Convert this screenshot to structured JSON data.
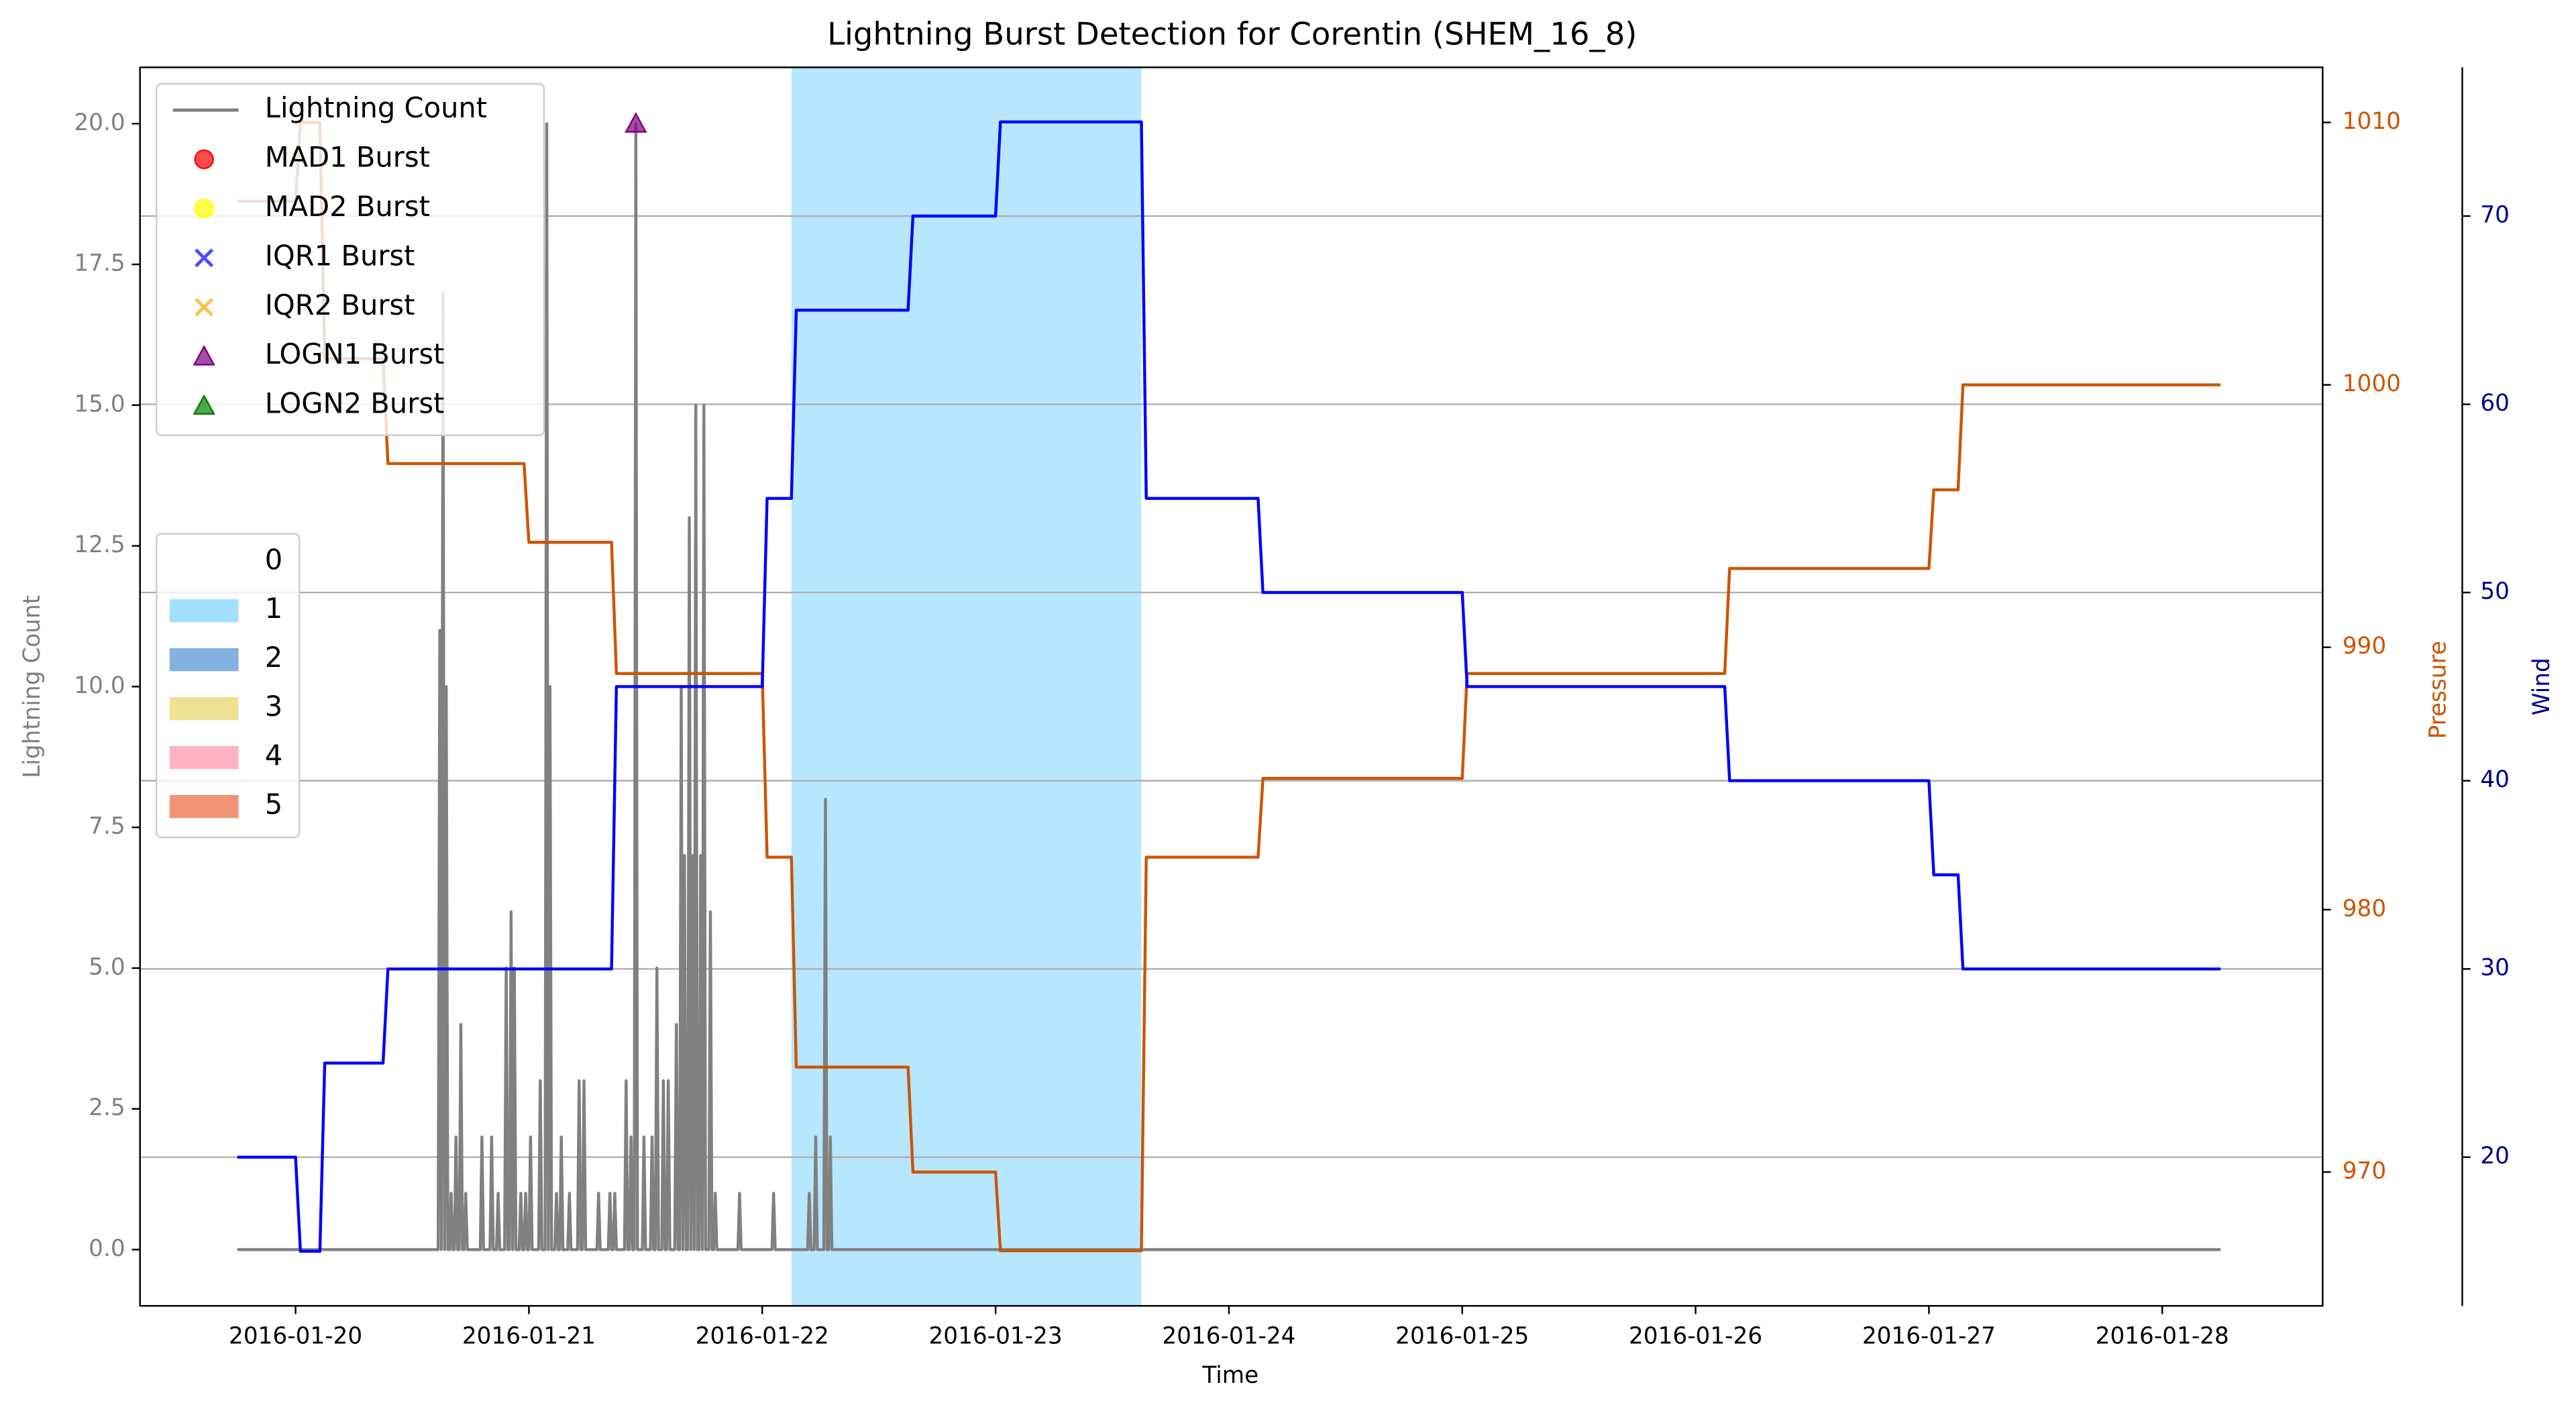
{
  "chart_data": {
    "type": "line",
    "title": "Lightning Burst Detection for Corentin (SHEM_16_8)",
    "xlabel": "Time",
    "ylabel": "Lightning Count",
    "y2label": "Pressure",
    "y3label": "Wind",
    "xlim": [
      "2016-01-19 08:00",
      "2016-01-28 16:30"
    ],
    "xticks": [
      "2016-01-20",
      "2016-01-21",
      "2016-01-22",
      "2016-01-23",
      "2016-01-24",
      "2016-01-25",
      "2016-01-26",
      "2016-01-27",
      "2016-01-28"
    ],
    "ylim": [
      -1,
      21
    ],
    "yticks": [
      {
        "value": 0,
        "label": "0.0"
      },
      2.5,
      {
        "value": 5,
        "label": "5.0"
      },
      7.5,
      {
        "value": 10,
        "label": "10.0"
      },
      12.5,
      {
        "value": 15,
        "label": "15.0"
      },
      17.5,
      {
        "value": 20,
        "label": "20.0"
      }
    ],
    "y2lim": [
      964.9,
      1012.1
    ],
    "y2ticks": [
      970,
      980,
      990,
      1000,
      1010
    ],
    "y3lim": [
      12.1,
      77.9
    ],
    "y3ticks": [
      20,
      30,
      40,
      50,
      60,
      70
    ],
    "grid": "y3",
    "axis_colors": {
      "y": "#808080",
      "y2": "#cc5500",
      "y3": "#00008b"
    },
    "legend": "upper left",
    "shading_legend": "center left",
    "shading": [
      {
        "name": "0",
        "color": "#ffffff",
        "spans": []
      },
      {
        "name": "1",
        "color": "#99ddff",
        "spans": [
          [
            "2016-01-22 03:00",
            "2016-01-23 15:00"
          ]
        ]
      },
      {
        "name": "2",
        "color": "#77aadd",
        "spans": []
      },
      {
        "name": "3",
        "color": "#eedd88",
        "spans": []
      },
      {
        "name": "4",
        "color": "#ffaabb",
        "spans": []
      },
      {
        "name": "5",
        "color": "#ee8866",
        "spans": []
      }
    ],
    "series": [
      {
        "name": "Lightning Count",
        "type": "line",
        "axis": "y",
        "color": "#808080",
        "x": [
          "2016-01-19 18:00",
          "2016-01-20 14:40",
          "2016-01-20 14:50",
          "2016-01-20 15:00",
          "2016-01-20 15:10",
          "2016-01-20 15:20",
          "2016-01-20 15:30",
          "2016-01-20 15:40",
          "2016-01-20 15:50",
          "2016-01-20 16:00",
          "2016-01-20 16:10",
          "2016-01-20 16:20",
          "2016-01-20 16:30",
          "2016-01-20 16:40",
          "2016-01-20 16:50",
          "2016-01-20 17:00",
          "2016-01-20 17:10",
          "2016-01-20 17:20",
          "2016-01-20 17:30",
          "2016-01-20 17:40",
          "2016-01-20 19:00",
          "2016-01-20 19:10",
          "2016-01-20 19:20",
          "2016-01-20 20:00",
          "2016-01-20 20:10",
          "2016-01-20 20:20",
          "2016-01-20 20:40",
          "2016-01-20 20:50",
          "2016-01-20 21:00",
          "2016-01-20 21:30",
          "2016-01-20 21:40",
          "2016-01-20 21:50",
          "2016-01-20 22:00",
          "2016-01-20 22:10",
          "2016-01-20 22:20",
          "2016-01-20 22:30",
          "2016-01-20 22:40",
          "2016-01-20 23:00",
          "2016-01-20 23:10",
          "2016-01-20 23:20",
          "2016-01-20 23:30",
          "2016-01-20 23:40",
          "2016-01-20 23:50",
          "2016-01-21 00:00",
          "2016-01-21 00:10",
          "2016-01-21 00:20",
          "2016-01-21 01:00",
          "2016-01-21 01:10",
          "2016-01-21 01:20",
          "2016-01-21 01:40",
          "2016-01-21 01:50",
          "2016-01-21 02:00",
          "2016-01-21 02:10",
          "2016-01-21 02:20",
          "2016-01-21 02:40",
          "2016-01-21 02:50",
          "2016-01-21 03:00",
          "2016-01-21 03:10",
          "2016-01-21 03:20",
          "2016-01-21 03:30",
          "2016-01-21 04:00",
          "2016-01-21 04:10",
          "2016-01-21 04:20",
          "2016-01-21 05:00",
          "2016-01-21 05:10",
          "2016-01-21 05:20",
          "2016-01-21 05:30",
          "2016-01-21 05:40",
          "2016-01-21 05:50",
          "2016-01-21 07:00",
          "2016-01-21 07:10",
          "2016-01-21 07:20",
          "2016-01-21 08:10",
          "2016-01-21 08:20",
          "2016-01-21 08:30",
          "2016-01-21 08:40",
          "2016-01-21 08:50",
          "2016-01-21 09:00",
          "2016-01-21 09:50",
          "2016-01-21 10:00",
          "2016-01-21 10:10",
          "2016-01-21 10:20",
          "2016-01-21 10:30",
          "2016-01-21 10:40",
          "2016-01-21 10:50",
          "2016-01-21 11:00",
          "2016-01-21 11:10",
          "2016-01-21 11:40",
          "2016-01-21 11:50",
          "2016-01-21 12:00",
          "2016-01-21 12:30",
          "2016-01-21 12:40",
          "2016-01-21 12:50",
          "2016-01-21 13:00",
          "2016-01-21 13:10",
          "2016-01-21 13:20",
          "2016-01-21 13:40",
          "2016-01-21 13:50",
          "2016-01-21 14:00",
          "2016-01-21 14:10",
          "2016-01-21 14:20",
          "2016-01-21 14:30",
          "2016-01-21 15:00",
          "2016-01-21 15:10",
          "2016-01-21 15:20",
          "2016-01-21 15:30",
          "2016-01-21 15:40",
          "2016-01-21 15:50",
          "2016-01-21 16:00",
          "2016-01-21 16:10",
          "2016-01-21 16:20",
          "2016-01-21 16:30",
          "2016-01-21 16:40",
          "2016-01-21 16:50",
          "2016-01-21 17:00",
          "2016-01-21 17:10",
          "2016-01-21 17:20",
          "2016-01-21 17:30",
          "2016-01-21 17:40",
          "2016-01-21 17:50",
          "2016-01-21 18:00",
          "2016-01-21 18:10",
          "2016-01-21 18:30",
          "2016-01-21 18:40",
          "2016-01-21 18:50",
          "2016-01-21 19:00",
          "2016-01-21 19:10",
          "2016-01-21 19:20",
          "2016-01-21 21:30",
          "2016-01-21 21:40",
          "2016-01-21 21:50",
          "2016-01-22 01:00",
          "2016-01-22 01:10",
          "2016-01-22 01:20",
          "2016-01-22 04:40",
          "2016-01-22 04:50",
          "2016-01-22 05:00",
          "2016-01-22 05:20",
          "2016-01-22 05:30",
          "2016-01-22 05:40",
          "2016-01-22 06:20",
          "2016-01-22 06:30",
          "2016-01-22 06:40",
          "2016-01-22 06:50",
          "2016-01-22 07:00",
          "2016-01-22 07:10",
          "2016-01-28 06:00"
        ],
        "values": [
          0,
          0,
          11,
          0,
          17,
          0,
          10,
          0,
          0,
          1,
          0,
          0,
          2,
          0,
          0,
          4,
          0,
          0,
          1,
          0,
          0,
          2,
          0,
          0,
          2,
          0,
          0,
          1,
          0,
          0,
          5,
          0,
          0,
          6,
          0,
          5,
          0,
          0,
          1,
          0,
          0,
          1,
          0,
          0,
          2,
          0,
          0,
          3,
          0,
          0,
          20,
          0,
          10,
          0,
          0,
          1,
          0,
          0,
          2,
          0,
          0,
          1,
          0,
          0,
          3,
          0,
          0,
          3,
          0,
          0,
          1,
          0,
          0,
          1,
          0,
          0,
          1,
          0,
          0,
          3,
          0,
          0,
          2,
          0,
          0,
          20,
          0,
          0,
          2,
          0,
          0,
          2,
          0,
          0,
          5,
          0,
          0,
          3,
          0,
          0,
          3,
          0,
          0,
          4,
          0,
          0,
          10,
          0,
          7,
          0,
          0,
          13,
          0,
          7,
          0,
          15,
          0,
          0,
          7,
          0,
          15,
          0,
          0,
          6,
          0,
          0,
          1,
          0,
          0,
          1,
          0,
          0,
          1,
          0,
          0,
          1,
          0,
          0,
          2,
          0,
          0,
          8,
          0,
          0,
          2,
          0,
          0
        ]
      },
      {
        "name": "MAD1 Burst",
        "type": "scatter",
        "marker": "o",
        "axis": "y",
        "color": "#ff0000",
        "x": [],
        "values": []
      },
      {
        "name": "MAD2 Burst",
        "type": "scatter",
        "marker": "o",
        "axis": "y",
        "color": "#ffff00",
        "x": [],
        "values": []
      },
      {
        "name": "IQR1 Burst",
        "type": "scatter",
        "marker": "x",
        "axis": "y",
        "color": "#0000ff",
        "x": [],
        "values": []
      },
      {
        "name": "IQR2 Burst",
        "type": "scatter",
        "marker": "x",
        "axis": "y",
        "color": "#ffa500",
        "x": [],
        "values": []
      },
      {
        "name": "LOGN1 Burst",
        "type": "scatter",
        "marker": "^",
        "axis": "y",
        "color": "#800080",
        "x": [
          "2016-01-21 11:00"
        ],
        "values": [
          20
        ]
      },
      {
        "name": "LOGN2 Burst",
        "type": "scatter",
        "marker": "^",
        "axis": "y",
        "color": "#008000",
        "x": [],
        "values": []
      },
      {
        "type": "line",
        "axis": "y2",
        "color": "#cc5500",
        "x": [
          "2016-01-19 18:00",
          "2016-01-20 00:00",
          "2016-01-20 00:30",
          "2016-01-20 02:30",
          "2016-01-20 03:00",
          "2016-01-20 09:00",
          "2016-01-20 09:30",
          "2016-01-20 23:30",
          "2016-01-21 00:00",
          "2016-01-21 08:30",
          "2016-01-21 09:00",
          "2016-01-22 00:00",
          "2016-01-22 00:30",
          "2016-01-22 03:00",
          "2016-01-22 03:30",
          "2016-01-22 15:00",
          "2016-01-22 15:30",
          "2016-01-23 00:00",
          "2016-01-23 00:30",
          "2016-01-23 15:00",
          "2016-01-23 15:30",
          "2016-01-24 03:00",
          "2016-01-24 03:30",
          "2016-01-25 00:00",
          "2016-01-25 00:30",
          "2016-01-26 03:00",
          "2016-01-26 03:30",
          "2016-01-27 00:00",
          "2016-01-27 00:30",
          "2016-01-27 03:00",
          "2016-01-27 03:30",
          "2016-01-28 06:00"
        ],
        "values": [
          1007,
          1007,
          1010,
          1010,
          1001,
          1001,
          997,
          997,
          994,
          994,
          989,
          989,
          982,
          982,
          974,
          974,
          970,
          970,
          967,
          967,
          982,
          982,
          985,
          985,
          989,
          989,
          993,
          993,
          996,
          996,
          1000,
          1000
        ]
      },
      {
        "type": "line",
        "axis": "y3",
        "color": "#0000ff",
        "x": [
          "2016-01-19 18:00",
          "2016-01-20 00:00",
          "2016-01-20 00:30",
          "2016-01-20 02:30",
          "2016-01-20 03:00",
          "2016-01-20 09:00",
          "2016-01-20 09:30",
          "2016-01-21 08:30",
          "2016-01-21 09:00",
          "2016-01-22 00:00",
          "2016-01-22 00:30",
          "2016-01-22 03:00",
          "2016-01-22 03:30",
          "2016-01-22 15:00",
          "2016-01-22 15:30",
          "2016-01-23 00:00",
          "2016-01-23 00:30",
          "2016-01-23 15:00",
          "2016-01-23 15:30",
          "2016-01-24 03:00",
          "2016-01-24 03:30",
          "2016-01-25 00:00",
          "2016-01-25 00:30",
          "2016-01-26 03:00",
          "2016-01-26 03:30",
          "2016-01-27 00:00",
          "2016-01-27 00:30",
          "2016-01-27 03:00",
          "2016-01-27 03:30",
          "2016-01-28 06:00"
        ],
        "values": [
          20,
          20,
          15,
          15,
          25,
          25,
          30,
          30,
          45,
          45,
          55,
          55,
          65,
          65,
          70,
          70,
          75,
          75,
          55,
          55,
          50,
          50,
          45,
          45,
          40,
          40,
          35,
          35,
          30,
          30
        ]
      }
    ]
  }
}
